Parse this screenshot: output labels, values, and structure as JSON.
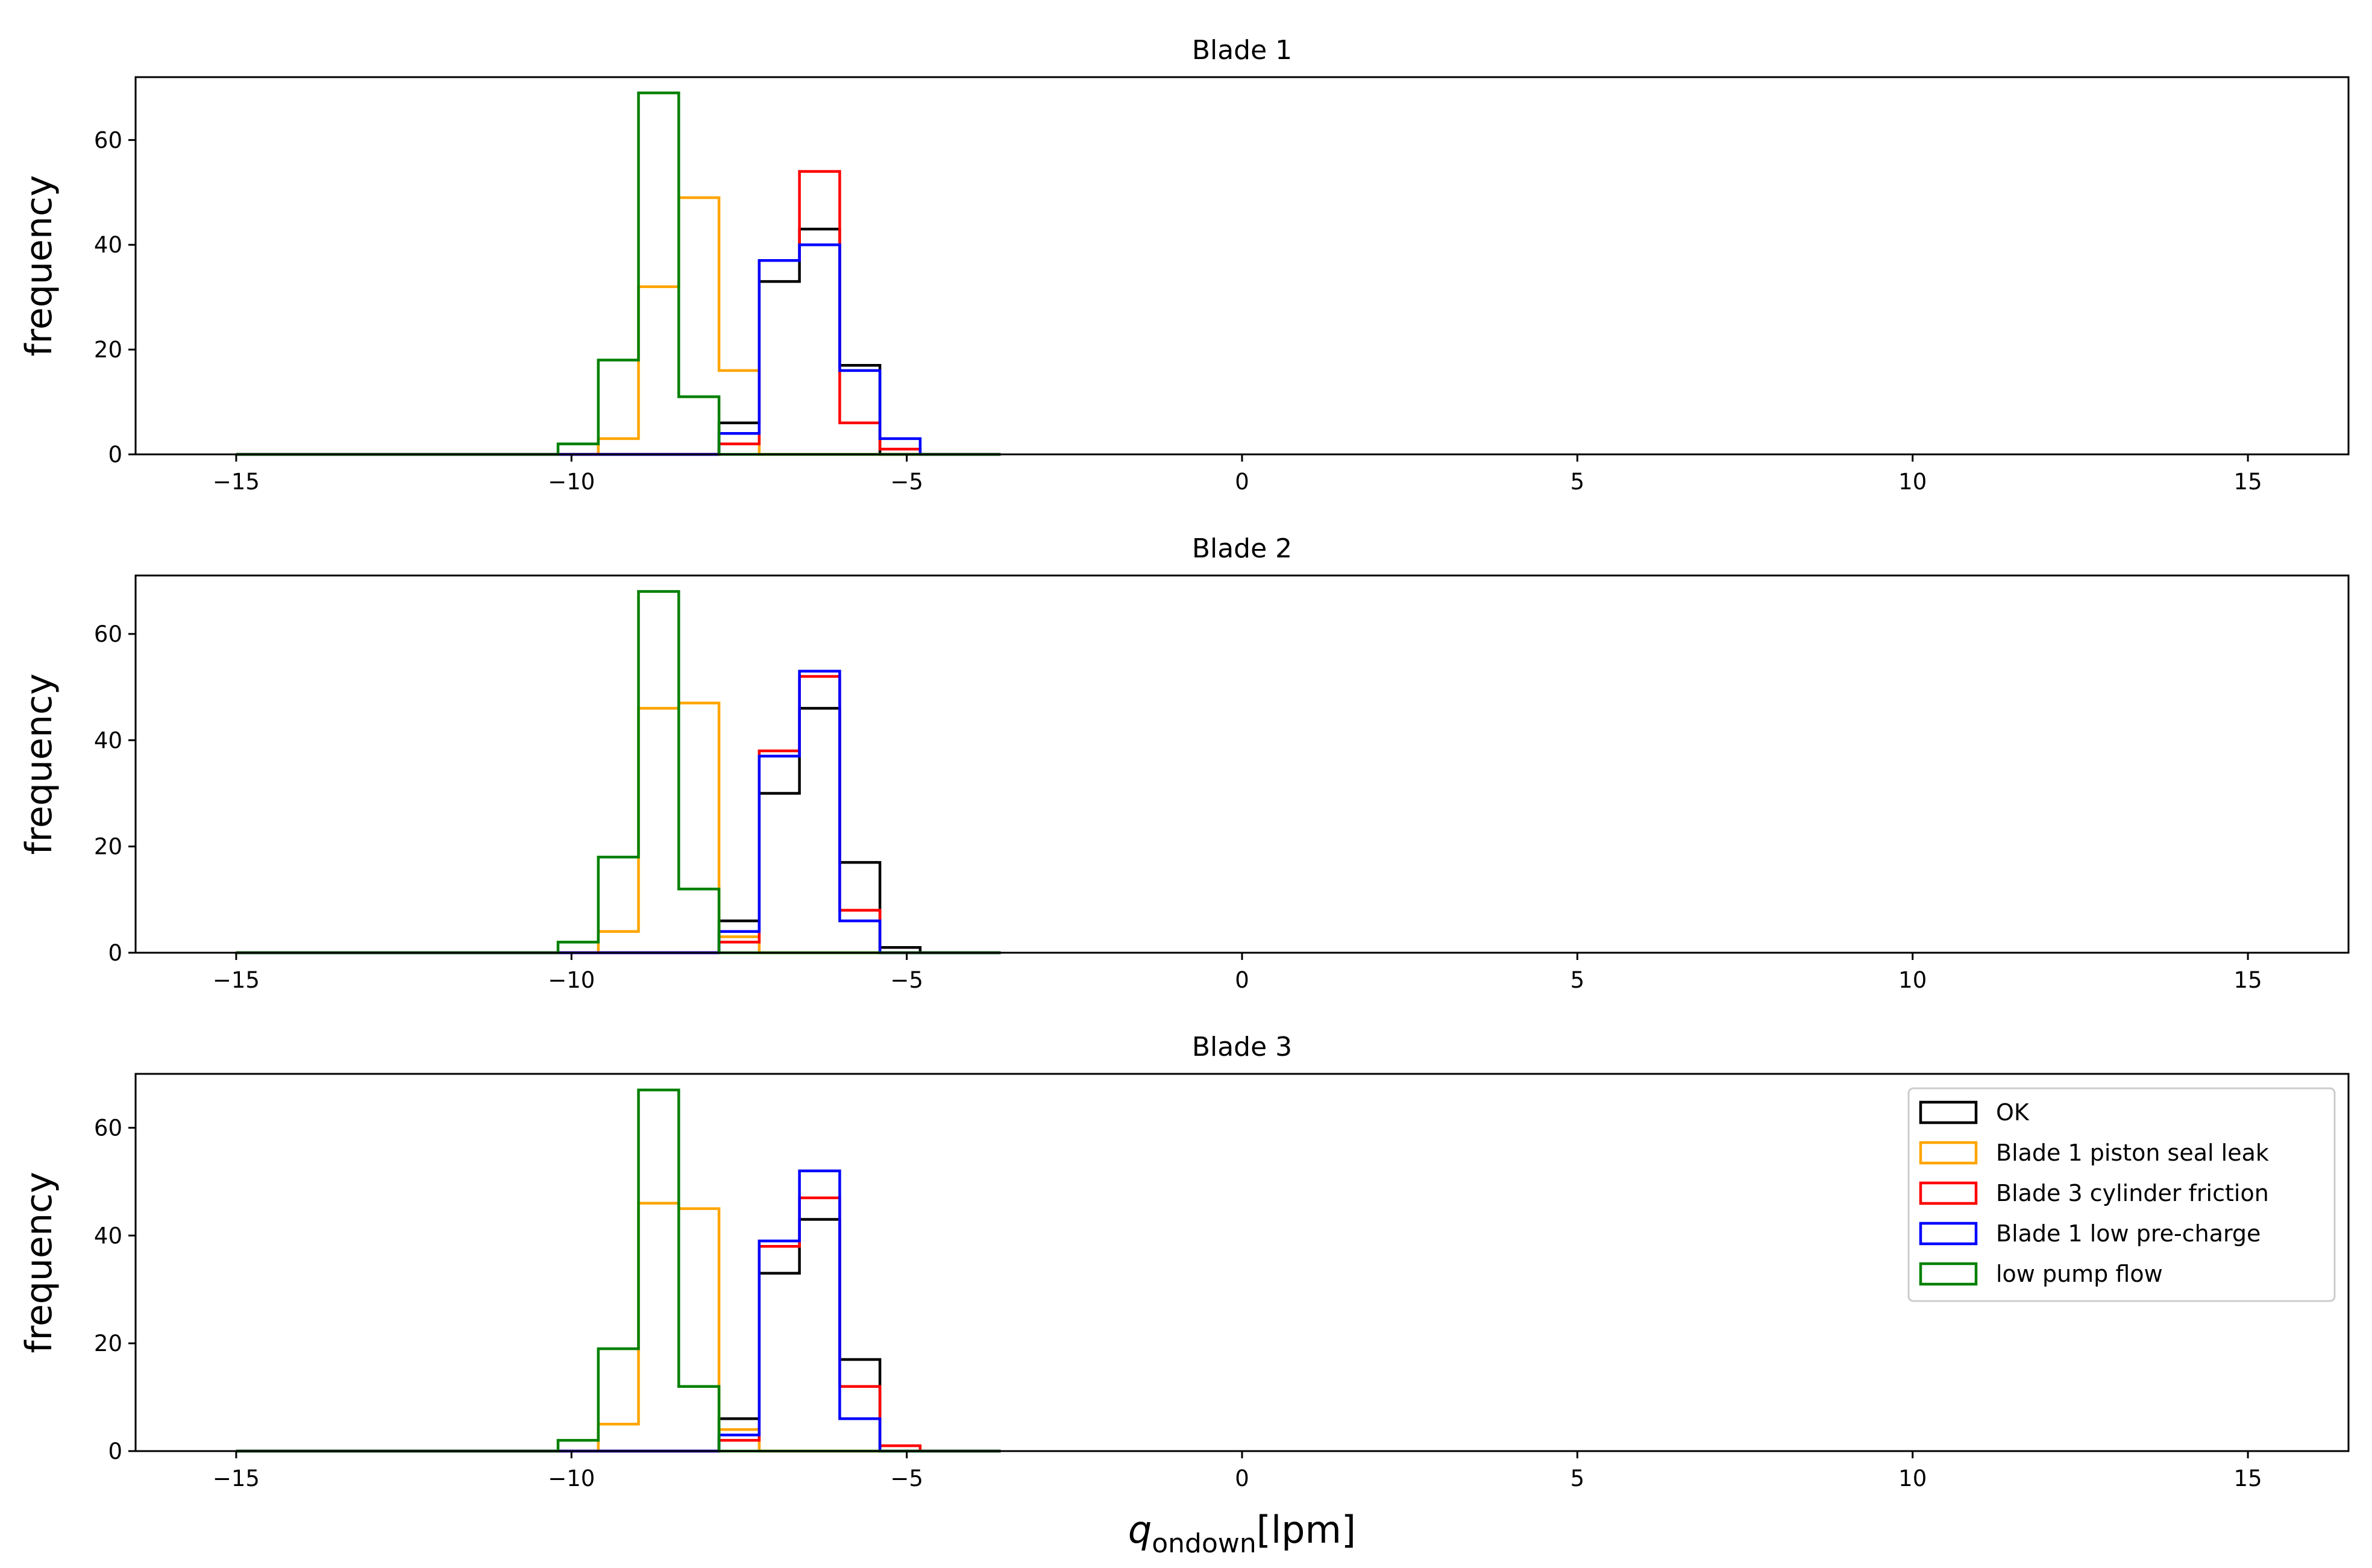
{
  "chart_data": {
    "type": "histogram",
    "xlabel": "q_ondown[lpm]",
    "xlabel_main": "q",
    "xlabel_sub": "ondown",
    "xlabel_unit": "[lpm]",
    "xlim": [
      -16.5,
      16.5
    ],
    "xticks": [
      -15,
      -10,
      -5,
      0,
      5,
      10,
      15
    ],
    "xtick_labels": [
      "−15",
      "−10",
      "−5",
      "0",
      "5",
      "10",
      "15"
    ],
    "bin_start": -15.0,
    "bin_width": 0.6,
    "legend_location": "upper right of Blade 3 panel",
    "series_colors": {
      "OK": "#000000",
      "Blade 1 piston seal leak": "#FFA500",
      "Blade 3 cylinder friction": "#FF0000",
      "Blade 1 low pre-charge": "#0000FF",
      "low pump flow": "#008000"
    },
    "panels": [
      {
        "title": "Blade 1",
        "ylabel": "frequency",
        "ylim": [
          0,
          72
        ],
        "yticks": [
          0,
          20,
          40,
          60
        ],
        "series": [
          {
            "name": "OK",
            "counts": [
              0,
              0,
              0,
              0,
              0,
              0,
              0,
              0,
              0,
              0,
              0,
              0,
              6,
              33,
              43,
              17,
              0,
              0,
              0
            ]
          },
          {
            "name": "Blade 1 piston seal leak",
            "counts": [
              0,
              0,
              0,
              0,
              0,
              0,
              0,
              0,
              0,
              3,
              32,
              49,
              16,
              0,
              0,
              0,
              0,
              0,
              0
            ]
          },
          {
            "name": "Blade 3 cylinder friction",
            "counts": [
              0,
              0,
              0,
              0,
              0,
              0,
              0,
              0,
              0,
              0,
              0,
              0,
              2,
              37,
              54,
              6,
              1,
              0,
              0
            ]
          },
          {
            "name": "Blade 1 low pre-charge",
            "counts": [
              0,
              0,
              0,
              0,
              0,
              0,
              0,
              0,
              0,
              0,
              0,
              0,
              4,
              37,
              40,
              16,
              3,
              0,
              0
            ]
          },
          {
            "name": "low pump flow",
            "counts": [
              0,
              0,
              0,
              0,
              0,
              0,
              0,
              0,
              2,
              18,
              69,
              11,
              0,
              0,
              0,
              0,
              0,
              0,
              0
            ]
          }
        ]
      },
      {
        "title": "Blade 2",
        "ylabel": "frequency",
        "ylim": [
          0,
          71
        ],
        "yticks": [
          0,
          20,
          40,
          60
        ],
        "series": [
          {
            "name": "OK",
            "counts": [
              0,
              0,
              0,
              0,
              0,
              0,
              0,
              0,
              0,
              0,
              0,
              0,
              6,
              30,
              46,
              17,
              1,
              0,
              0
            ]
          },
          {
            "name": "Blade 1 piston seal leak",
            "counts": [
              0,
              0,
              0,
              0,
              0,
              0,
              0,
              0,
              0,
              4,
              46,
              47,
              3,
              0,
              0,
              0,
              0,
              0,
              0
            ]
          },
          {
            "name": "Blade 3 cylinder friction",
            "counts": [
              0,
              0,
              0,
              0,
              0,
              0,
              0,
              0,
              0,
              0,
              0,
              0,
              2,
              38,
              52,
              8,
              0,
              0,
              0
            ]
          },
          {
            "name": "Blade 1 low pre-charge",
            "counts": [
              0,
              0,
              0,
              0,
              0,
              0,
              0,
              0,
              0,
              0,
              0,
              0,
              4,
              37,
              53,
              6,
              0,
              0,
              0
            ]
          },
          {
            "name": "low pump flow",
            "counts": [
              0,
              0,
              0,
              0,
              0,
              0,
              0,
              0,
              2,
              18,
              68,
              12,
              0,
              0,
              0,
              0,
              0,
              0,
              0
            ]
          }
        ]
      },
      {
        "title": "Blade 3",
        "ylabel": "frequency",
        "ylim": [
          0,
          70
        ],
        "yticks": [
          0,
          20,
          40,
          60
        ],
        "series": [
          {
            "name": "OK",
            "counts": [
              0,
              0,
              0,
              0,
              0,
              0,
              0,
              0,
              0,
              0,
              0,
              0,
              6,
              33,
              43,
              17,
              0,
              0,
              0
            ]
          },
          {
            "name": "Blade 1 piston seal leak",
            "counts": [
              0,
              0,
              0,
              0,
              0,
              0,
              0,
              0,
              0,
              5,
              46,
              45,
              4,
              0,
              0,
              0,
              0,
              0,
              0
            ]
          },
          {
            "name": "Blade 3 cylinder friction",
            "counts": [
              0,
              0,
              0,
              0,
              0,
              0,
              0,
              0,
              0,
              0,
              0,
              0,
              2,
              38,
              47,
              12,
              1,
              0,
              0
            ]
          },
          {
            "name": "Blade 1 low pre-charge",
            "counts": [
              0,
              0,
              0,
              0,
              0,
              0,
              0,
              0,
              0,
              0,
              0,
              0,
              3,
              39,
              52,
              6,
              0,
              0,
              0
            ]
          },
          {
            "name": "low pump flow",
            "counts": [
              0,
              0,
              0,
              0,
              0,
              0,
              0,
              0,
              2,
              19,
              67,
              12,
              0,
              0,
              0,
              0,
              0,
              0,
              0
            ]
          }
        ]
      }
    ],
    "legend": [
      "OK",
      "Blade 1 piston seal leak",
      "Blade 3 cylinder friction",
      "Blade 1 low pre-charge",
      "low pump flow"
    ]
  }
}
